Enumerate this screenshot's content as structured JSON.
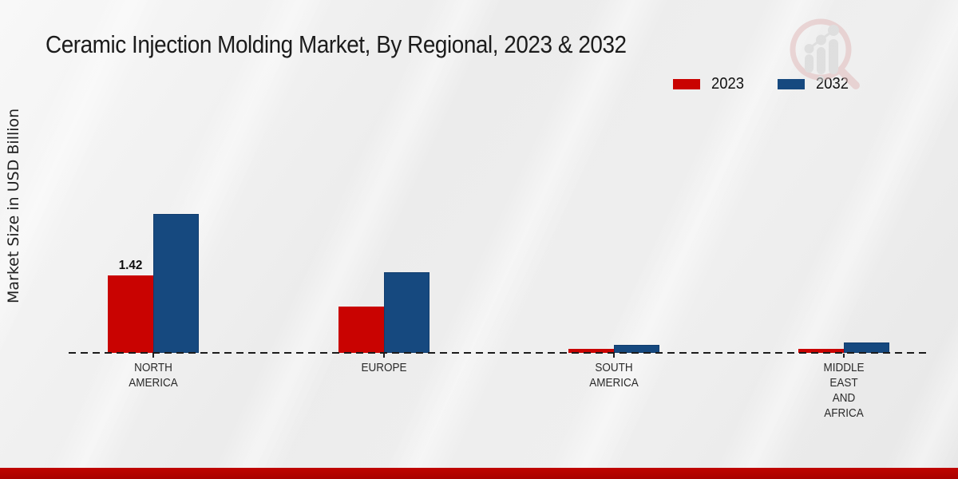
{
  "title": "Ceramic Injection Molding Market, By Regional, 2023 & 2032",
  "y_axis_label": "Market Size in USD Billion",
  "legend": {
    "items": [
      {
        "label": "2023",
        "color": "#c90301"
      },
      {
        "label": "2032",
        "color": "#16497f"
      }
    ]
  },
  "watermark_icon": "magnifier-bar-chart-logo",
  "colors": {
    "series_2023": "#c90301",
    "series_2032": "#16497f",
    "footer_bar": "#b30300",
    "baseline": "#1b1b1b"
  },
  "chart_data": {
    "type": "bar",
    "title": "Ceramic Injection Molding Market, By Regional, 2023 & 2032",
    "xlabel": "",
    "ylabel": "Market Size in USD Billion",
    "categories": [
      "NORTH AMERICA",
      "EUROPE",
      "SOUTH AMERICA",
      "MIDDLE EAST AND AFRICA"
    ],
    "category_lines": [
      [
        "NORTH",
        "AMERICA"
      ],
      [
        "EUROPE"
      ],
      [
        "SOUTH",
        "AMERICA"
      ],
      [
        "MIDDLE",
        "EAST",
        "AND",
        "AFRICA"
      ]
    ],
    "series": [
      {
        "name": "2023",
        "color": "#c90301",
        "values": [
          1.42,
          0.85,
          0.07,
          0.07
        ]
      },
      {
        "name": "2032",
        "color": "#16497f",
        "values": [
          2.55,
          1.48,
          0.15,
          0.19
        ]
      }
    ],
    "data_labels": [
      {
        "category_index": 0,
        "series_index": 0,
        "text": "1.42"
      }
    ],
    "ylim": [
      0,
      2.9
    ],
    "grid": false,
    "baseline_style": "dashed",
    "legend_position": "top-right"
  }
}
